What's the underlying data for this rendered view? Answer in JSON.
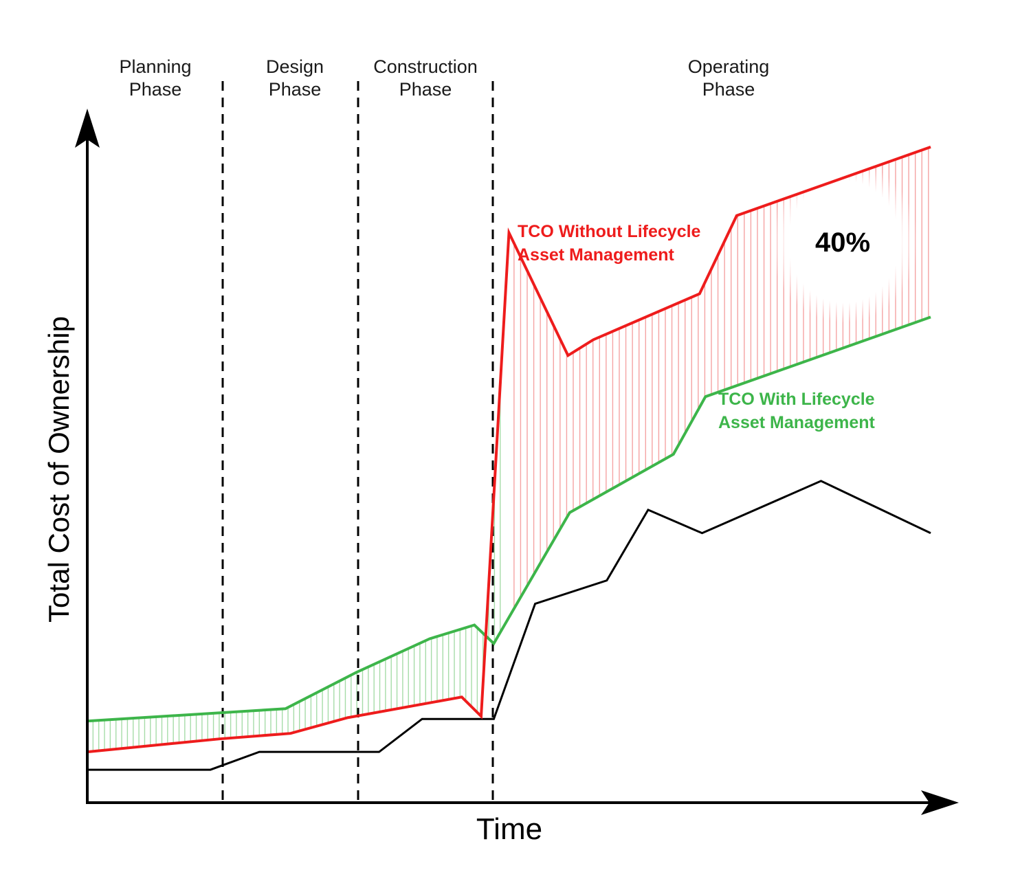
{
  "chart_data": {
    "type": "line",
    "xlabel": "Time",
    "ylabel": "Total Cost of Ownership",
    "grid": false,
    "phases": [
      {
        "line1": "Planning",
        "line2": "Phase"
      },
      {
        "line1": "Design",
        "line2": "Phase"
      },
      {
        "line1": "Construction",
        "line2": "Phase"
      },
      {
        "line1": "Operating",
        "line2": "Phase"
      }
    ],
    "series": [
      {
        "name": "TCO Without Lifecycle Asset Management",
        "label_lines": [
          "TCO Without Lifecycle",
          "Asset Management"
        ],
        "color": "#ee1c1c",
        "points": [
          [
            0,
            7.4
          ],
          [
            15.7,
            9.3
          ],
          [
            24.1,
            10.1
          ],
          [
            30.9,
            12.4
          ],
          [
            44.4,
            15.4
          ],
          [
            46.7,
            12.6
          ],
          [
            50,
            83.1
          ],
          [
            57,
            65.2
          ],
          [
            60,
            67.5
          ],
          [
            72.6,
            74.2
          ],
          [
            77,
            85.6
          ],
          [
            100,
            95.6
          ]
        ]
      },
      {
        "name": "TCO With Lifecycle Asset Management",
        "label_lines": [
          "TCO With Lifecycle",
          "Asset Management"
        ],
        "color": "#3db54a",
        "points": [
          [
            0,
            11.9
          ],
          [
            23.5,
            13.7
          ],
          [
            31.9,
            19
          ],
          [
            40.6,
            23.9
          ],
          [
            45.9,
            25.9
          ],
          [
            48.2,
            23.2
          ],
          [
            57.2,
            42.3
          ],
          [
            69.5,
            50.8
          ],
          [
            73.3,
            59.2
          ],
          [
            100,
            70.8
          ]
        ]
      },
      {
        "name": "",
        "color": "#000000",
        "points": [
          [
            0,
            4.8
          ],
          [
            14.6,
            4.8
          ],
          [
            20.4,
            7.4
          ],
          [
            34.6,
            7.4
          ],
          [
            39.7,
            12.2
          ],
          [
            48.2,
            12.2
          ],
          [
            53.1,
            29
          ],
          [
            61.6,
            32.4
          ],
          [
            66.5,
            42.7
          ],
          [
            72.9,
            39.3
          ],
          [
            87,
            46.9
          ],
          [
            100,
            39.3
          ]
        ]
      }
    ],
    "annotation": {
      "text": "40%"
    }
  },
  "colors": {
    "red": "#ee1c1c",
    "green": "#3db54a",
    "red_hatch": "#f5a3a3",
    "green_hatch": "#a6dca8",
    "axis": "#000000"
  }
}
